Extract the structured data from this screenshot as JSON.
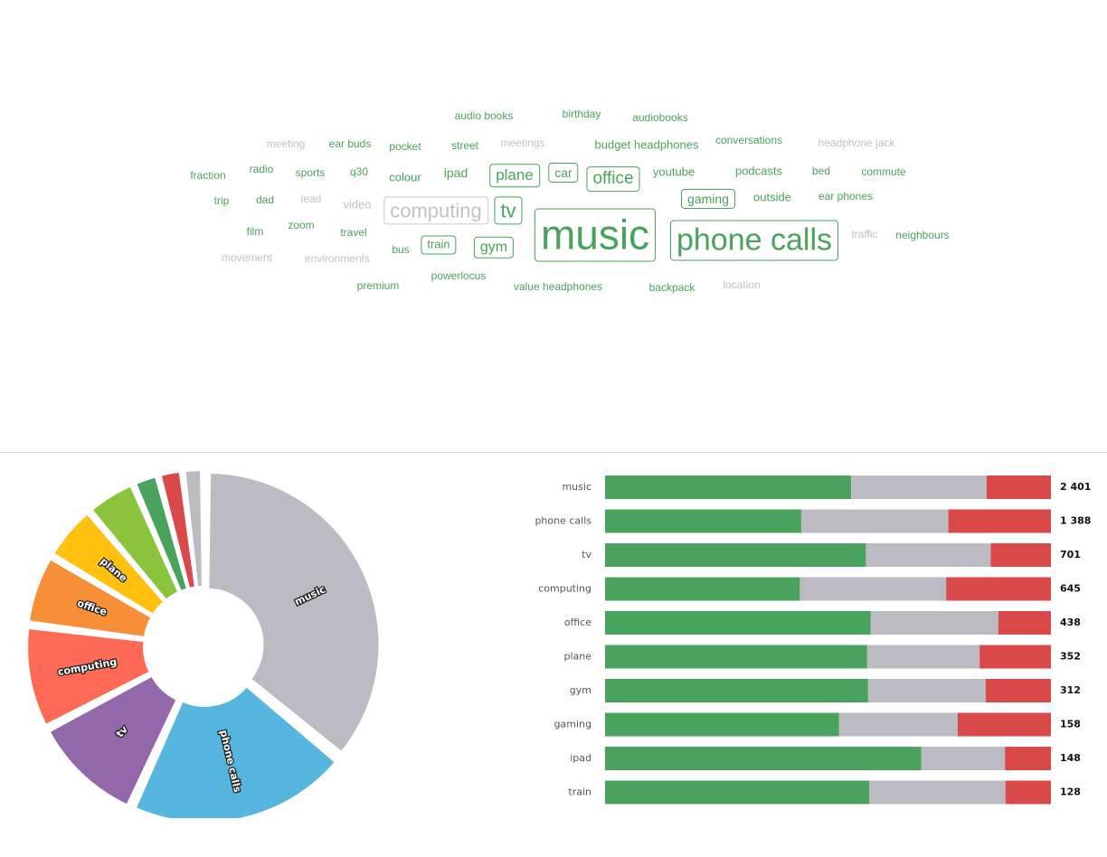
{
  "colors": {
    "positive": "#4aa35c",
    "neutral": "#bbbbc1",
    "negative": "#d9494a",
    "muted_text": "#c2c2c6"
  },
  "word_cloud": {
    "words": [
      {
        "text": "audio books",
        "color": "positive"
      },
      {
        "text": "birthday",
        "color": "positive"
      },
      {
        "text": "audiobooks",
        "color": "positive"
      },
      {
        "text": "meeting",
        "color": "muted"
      },
      {
        "text": "ear buds",
        "color": "positive"
      },
      {
        "text": "pocket",
        "color": "positive"
      },
      {
        "text": "street",
        "color": "positive"
      },
      {
        "text": "meetings",
        "color": "muted"
      },
      {
        "text": "budget headphones",
        "color": "positive"
      },
      {
        "text": "conversations",
        "color": "positive"
      },
      {
        "text": "headphone jack",
        "color": "muted"
      },
      {
        "text": "fraction",
        "color": "positive"
      },
      {
        "text": "radio",
        "color": "positive"
      },
      {
        "text": "sports",
        "color": "positive"
      },
      {
        "text": "q30",
        "color": "positive"
      },
      {
        "text": "colour",
        "color": "positive"
      },
      {
        "text": "ipad",
        "color": "positive"
      },
      {
        "text": "plane",
        "color": "positive"
      },
      {
        "text": "car",
        "color": "positive"
      },
      {
        "text": "office",
        "color": "positive"
      },
      {
        "text": "youtube",
        "color": "positive"
      },
      {
        "text": "podcasts",
        "color": "positive"
      },
      {
        "text": "bed",
        "color": "positive"
      },
      {
        "text": "commute",
        "color": "positive"
      },
      {
        "text": "trip",
        "color": "positive"
      },
      {
        "text": "dad",
        "color": "positive"
      },
      {
        "text": "lead",
        "color": "muted"
      },
      {
        "text": "video",
        "color": "muted"
      },
      {
        "text": "computing",
        "color": "muted"
      },
      {
        "text": "tv",
        "color": "positive"
      },
      {
        "text": "music",
        "color": "positive"
      },
      {
        "text": "gaming",
        "color": "positive"
      },
      {
        "text": "outside",
        "color": "positive"
      },
      {
        "text": "ear phones",
        "color": "positive"
      },
      {
        "text": "phone calls",
        "color": "positive"
      },
      {
        "text": "film",
        "color": "positive"
      },
      {
        "text": "zoom",
        "color": "positive"
      },
      {
        "text": "travel",
        "color": "positive"
      },
      {
        "text": "bus",
        "color": "positive"
      },
      {
        "text": "train",
        "color": "positive"
      },
      {
        "text": "gym",
        "color": "positive"
      },
      {
        "text": "traffic",
        "color": "muted"
      },
      {
        "text": "neighbours",
        "color": "positive"
      },
      {
        "text": "movement",
        "color": "muted"
      },
      {
        "text": "environments",
        "color": "muted"
      },
      {
        "text": "powerlocus",
        "color": "positive"
      },
      {
        "text": "premium",
        "color": "positive"
      },
      {
        "text": "value headphones",
        "color": "positive"
      },
      {
        "text": "backpack",
        "color": "positive"
      },
      {
        "text": "location",
        "color": "muted"
      }
    ]
  },
  "chart_data": [
    {
      "type": "pie",
      "donut": true,
      "categories": [
        "music",
        "phone calls",
        "tv",
        "computing",
        "office",
        "plane",
        "",
        "",
        "",
        ""
      ],
      "values": [
        2401,
        1388,
        701,
        645,
        438,
        352,
        312,
        158,
        148,
        128
      ],
      "slice_colors": [
        "#bbbbc1",
        "#57b6de",
        "#9268ab",
        "#fe6a56",
        "#f68f38",
        "#ffc010",
        "#8ac43d",
        "#4aa35c",
        "#d9494a",
        "#bbbbc1"
      ]
    },
    {
      "type": "bar",
      "orientation": "horizontal",
      "stacked": true,
      "normalized": true,
      "categories": [
        "music",
        "phone calls",
        "tv",
        "computing",
        "office",
        "plane",
        "gym",
        "gaming",
        "ipad",
        "train"
      ],
      "totals": [
        "2 401",
        "1 388",
        "701",
        "645",
        "438",
        "352",
        "312",
        "158",
        "148",
        "128"
      ],
      "series": [
        {
          "values": [
            0.552,
            0.44,
            0.585,
            0.437,
            0.596,
            0.588,
            0.59,
            0.525,
            0.709,
            0.593
          ]
        },
        {
          "values": [
            0.304,
            0.33,
            0.28,
            0.328,
            0.286,
            0.252,
            0.264,
            0.266,
            0.188,
            0.305
          ]
        },
        {
          "values": [
            0.144,
            0.23,
            0.135,
            0.235,
            0.118,
            0.16,
            0.146,
            0.209,
            0.103,
            0.102
          ]
        }
      ],
      "series_colors": [
        "#4aa35c",
        "#bbbbc1",
        "#d9494a"
      ]
    }
  ]
}
